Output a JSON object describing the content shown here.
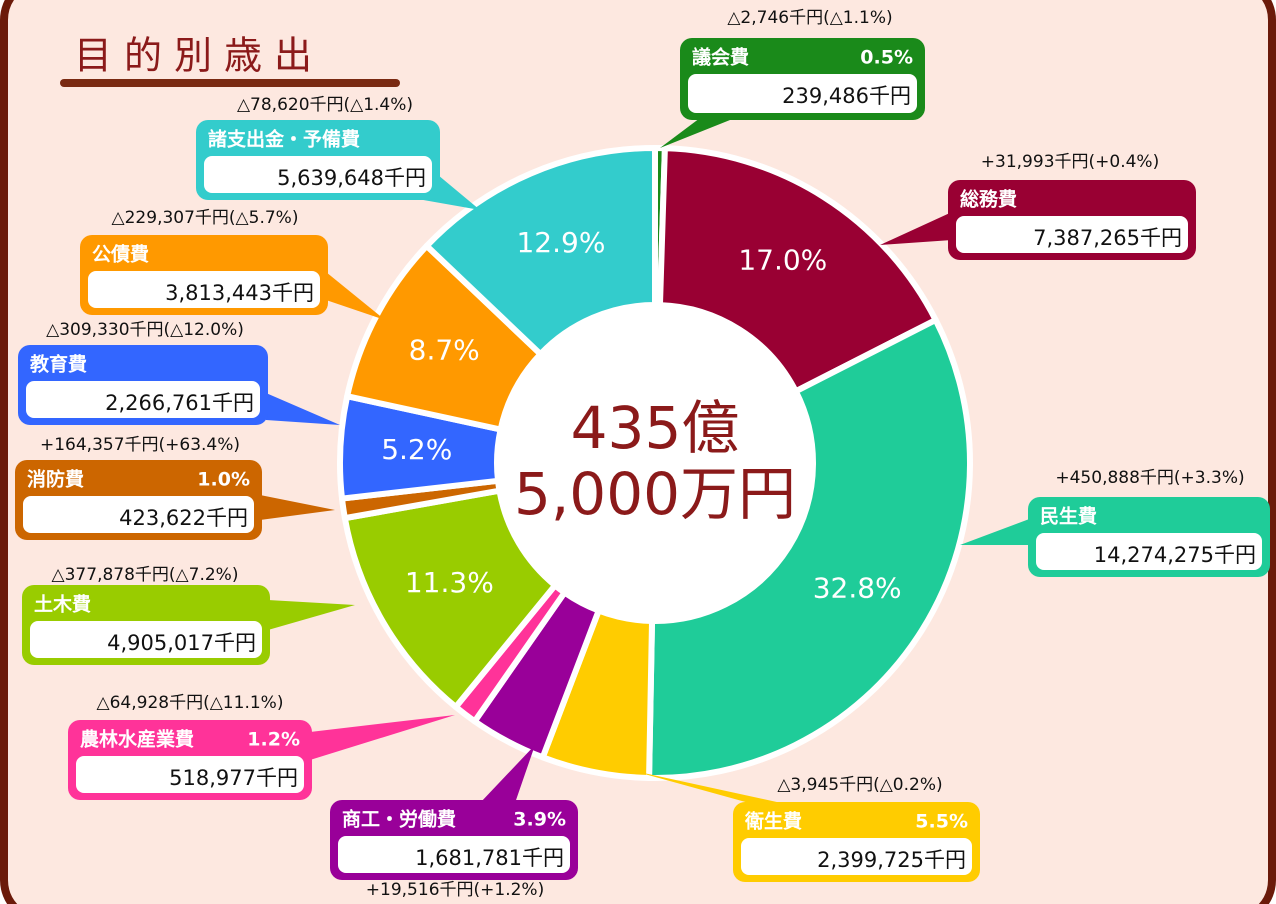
{
  "chart_data": {
    "type": "pie",
    "title": "目的別歳出",
    "center_text": [
      "435億",
      "5,000万円"
    ],
    "categories": [
      "議会費",
      "総務費",
      "民生費",
      "衛生費",
      "商工・労働費",
      "農林水産業費",
      "土木費",
      "消防費",
      "教育費",
      "公債費",
      "諸支出金・予備費"
    ],
    "values": [
      0.5,
      17.0,
      32.8,
      5.5,
      3.9,
      1.2,
      11.3,
      1.0,
      5.2,
      8.7,
      12.9
    ],
    "value_labels": [
      "0.5%",
      "17.0%",
      "32.8%",
      "5.5%",
      "3.9%",
      "1.2%",
      "11.3%",
      "1.0%",
      "5.2%",
      "8.7%",
      "12.9%"
    ],
    "amount_labels": [
      "239,486千円",
      "7,387,265千円",
      "14,274,275千円",
      "2,399,725千円",
      "1,681,781千円",
      "518,977千円",
      "4,905,017千円",
      "423,622千円",
      "2,266,761千円",
      "3,813,443千円",
      "5,639,648千円"
    ],
    "change_labels": [
      "△2,746千円(△1.1%)",
      "+31,993千円(+0.4%)",
      "+450,888千円(+3.3%)",
      "△3,945千円(△0.2%)",
      "+19,516千円(+1.2%)",
      "△64,928千円(△11.1%)",
      "△377,878千円(△7.2%)",
      "+164,357千円(+63.4%)",
      "△309,330千円(△12.0%)",
      "△229,307千円(△5.7%)",
      "△78,620千円(△1.4%)"
    ],
    "colors": [
      "#1a8a1a",
      "#990033",
      "#1fcc99",
      "#ffcc00",
      "#990099",
      "#ff3399",
      "#99cc00",
      "#cc6600",
      "#3366ff",
      "#ff9900",
      "#33cccc"
    ],
    "donut": true
  }
}
